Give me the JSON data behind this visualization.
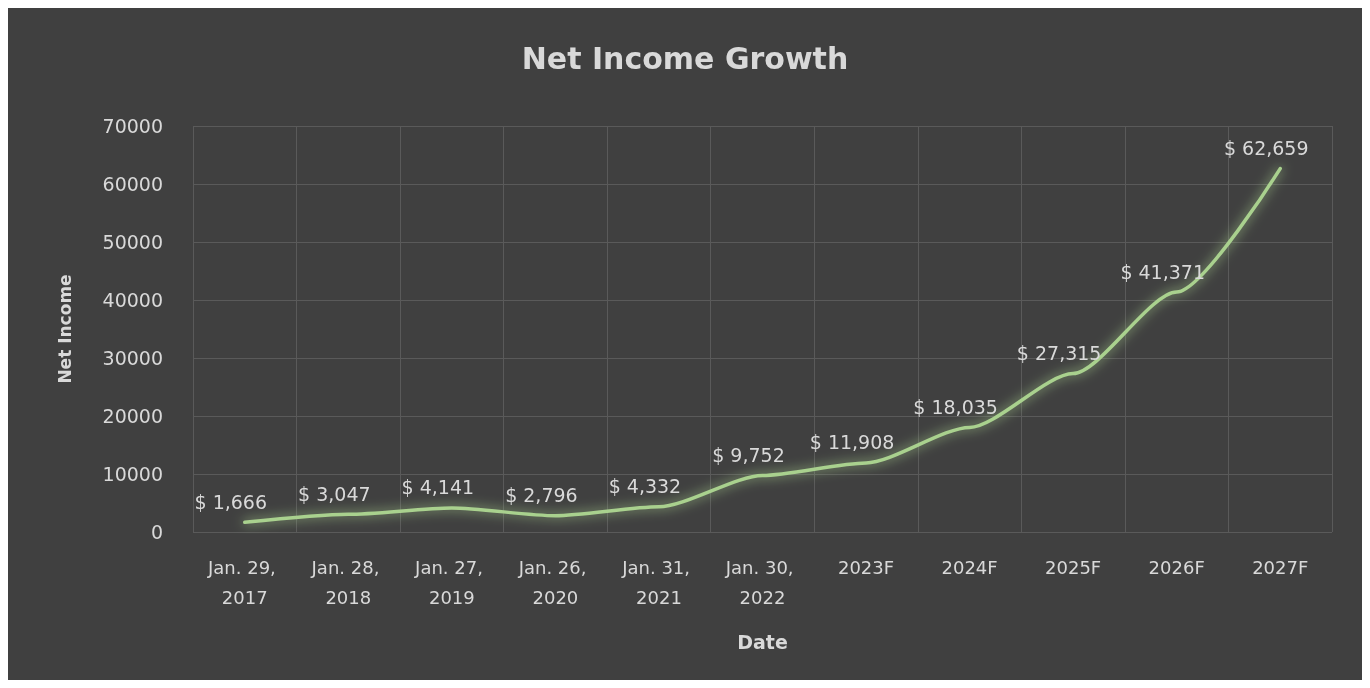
{
  "chart_data": {
    "type": "line",
    "title": "Net Income Growth",
    "xlabel": "Date",
    "ylabel": "Net Income",
    "categories": [
      "Jan. 29, 2017",
      "Jan. 28, 2018",
      "Jan. 27, 2019",
      "Jan. 26, 2020",
      "Jan. 31, 2021",
      "Jan. 30, 2022",
      "2023F",
      "2024F",
      "2025F",
      "2026F",
      "2027F"
    ],
    "series": [
      {
        "color": "#a9d18e",
        "values": [
          1666,
          3047,
          4141,
          2796,
          4332,
          9752,
          11908,
          18035,
          27315,
          41371,
          62659
        ],
        "value_labels": [
          "$ 1,666",
          "$ 3,047",
          "$ 4,141",
          "$ 2,796",
          "$ 4,332",
          "$ 9,752",
          "$ 11,908",
          "$ 18,035",
          "$ 27,315",
          "$ 41,371",
          "$ 62,659"
        ]
      }
    ],
    "ylim": [
      0,
      70000
    ],
    "yticks": [
      0,
      10000,
      20000,
      30000,
      40000,
      50000,
      60000,
      70000
    ],
    "grid": true,
    "marker": "none",
    "line_style": "solid"
  }
}
